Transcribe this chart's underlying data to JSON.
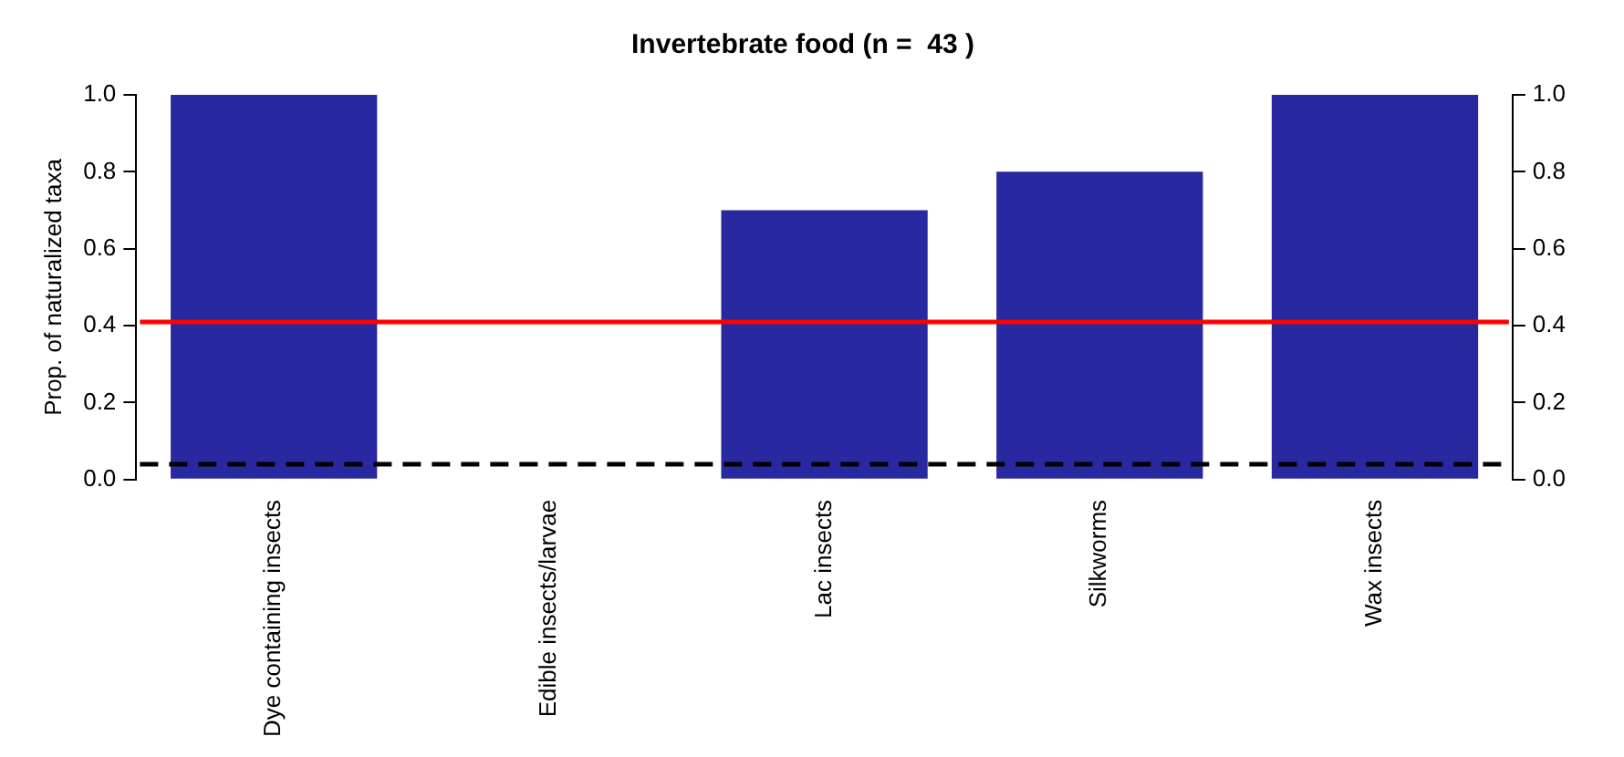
{
  "chart_data": {
    "type": "bar",
    "title": "Invertebrate food (n =  43 )",
    "ylabel": "Prop. of naturalized taxa",
    "categories": [
      "Dye containing insects",
      "Edible insects/larvae",
      "Lac insects",
      "Silkworms",
      "Wax insects"
    ],
    "values": [
      1.0,
      0,
      0.7,
      0.8,
      1.0
    ],
    "color": "#2828a0",
    "ylim": [
      0,
      1
    ],
    "yticks": [
      {
        "value": 0,
        "label": "0.0"
      },
      0.2,
      0.4,
      0.6,
      0.8,
      {
        "value": 1,
        "label": "1.0"
      }
    ],
    "y2lim": [
      0,
      1
    ],
    "y2ticks": [
      {
        "value": 0,
        "label": "0.0"
      },
      0.2,
      0.4,
      0.6,
      0.8,
      {
        "value": 1,
        "label": "1.0"
      }
    ],
    "ref_lines": [
      {
        "axis": "y",
        "value": 0.41,
        "color": "#ff0000",
        "line_style": "solid"
      },
      {
        "axis": "y",
        "value": 0.04,
        "color": "#000000",
        "line_style": "dashed"
      }
    ]
  }
}
